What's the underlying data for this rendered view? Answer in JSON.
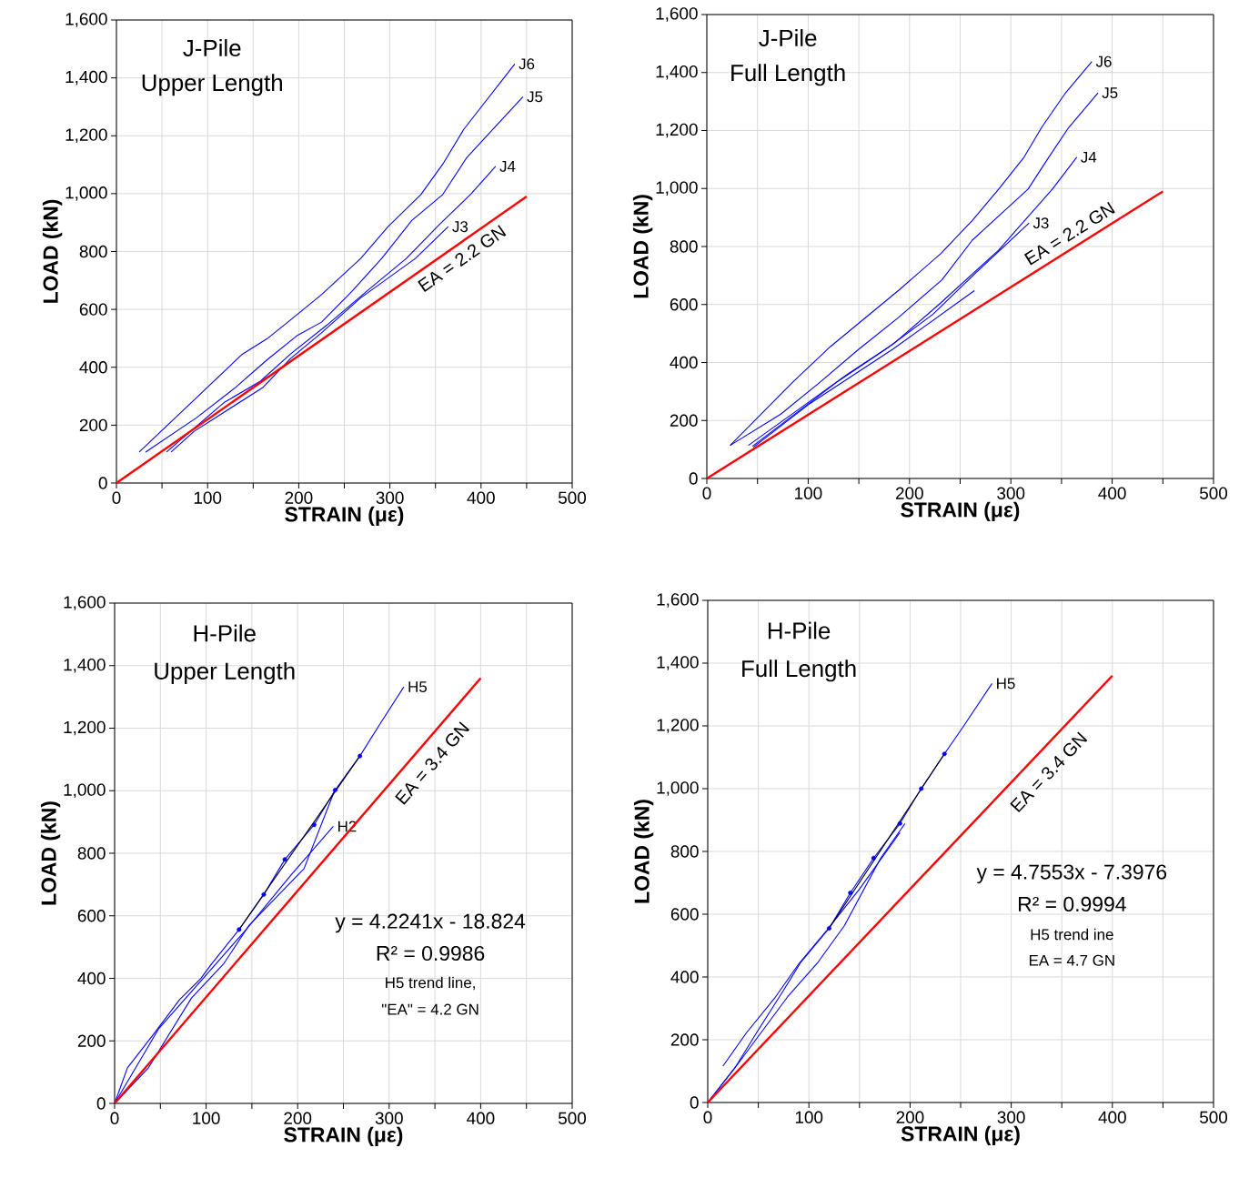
{
  "chart_data": [
    {
      "type": "line",
      "title": "J-Pile",
      "subtitle": "Upper Length",
      "xlabel": "STRAIN  (με)",
      "ylabel": "LOAD (kN)",
      "xlim": [
        0,
        500
      ],
      "ylim": [
        0,
        1600
      ],
      "xticks": [
        0,
        {
          "value": 50,
          "label": null
        },
        100,
        {
          "value": 150,
          "label": null
        },
        200,
        {
          "value": 250,
          "label": null
        },
        300,
        {
          "value": 350,
          "label": null
        },
        400,
        {
          "value": 450,
          "label": null
        },
        500
      ],
      "yticks": [
        0,
        200,
        400,
        600,
        800,
        {
          "value": 1000,
          "label": "1,000"
        },
        {
          "value": 1200,
          "label": "1,200"
        },
        {
          "value": 1400,
          "label": "1,400"
        },
        {
          "value": 1600,
          "label": "1,600"
        }
      ],
      "grid": true,
      "annotations": [
        "EA = 2.2 GN"
      ],
      "series": [
        {
          "name": "J6",
          "color": "#0000ff",
          "x": [
            25,
            138,
            165,
            188,
            225,
            268,
            298,
            334,
            358,
            381,
            437
          ],
          "values": [
            107,
            445,
            498,
            556,
            651,
            776,
            886,
            997,
            1102,
            1222,
            1448
          ]
        },
        {
          "name": "J5",
          "color": "#0000ff",
          "x": [
            32,
            88,
            131,
            165,
            198,
            225,
            258,
            291,
            324,
            358,
            384,
            413,
            446
          ],
          "values": [
            107,
            226,
            331,
            425,
            509,
            556,
            661,
            776,
            907,
            997,
            1123,
            1222,
            1335
          ]
        },
        {
          "name": "J4",
          "color": "#0000ff",
          "x": [
            55,
            81,
            118,
            158,
            191,
            231,
            274,
            318,
            354,
            389,
            416
          ],
          "values": [
            107,
            178,
            278,
            352,
            446,
            546,
            661,
            776,
            892,
            999,
            1094
          ]
        },
        {
          "name": "J3",
          "color": "#0000ff",
          "x": [
            60,
            85,
            161,
            191,
            225,
            268,
            328,
            364
          ],
          "values": [
            107,
            178,
            331,
            430,
            519,
            640,
            776,
            886
          ]
        },
        {
          "color": "#ff0000",
          "x": [
            0,
            450
          ],
          "values": [
            0,
            990
          ]
        }
      ]
    },
    {
      "type": "line",
      "title": "J-Pile",
      "subtitle": "Full Length",
      "xlabel": "STRAIN  (με)",
      "ylabel": "LOAD (kN)",
      "xlim": [
        0,
        500
      ],
      "ylim": [
        0,
        1600
      ],
      "xticks": [
        0,
        {
          "value": 50,
          "label": null
        },
        100,
        {
          "value": 150,
          "label": null
        },
        200,
        {
          "value": 250,
          "label": null
        },
        300,
        {
          "value": 350,
          "label": null
        },
        400,
        {
          "value": 450,
          "label": null
        },
        500
      ],
      "yticks": [
        0,
        200,
        400,
        600,
        800,
        {
          "value": 1000,
          "label": "1,000"
        },
        {
          "value": 1200,
          "label": "1,200"
        },
        {
          "value": 1400,
          "label": "1,400"
        },
        {
          "value": 1600,
          "label": "1,600"
        }
      ],
      "grid": true,
      "annotations": [
        "EA = 2.2 GN"
      ],
      "series": [
        {
          "name": "J6",
          "color": "#0000ff",
          "x": [
            23,
            85,
            122,
            190,
            231,
            262,
            288,
            313,
            331,
            354,
            380
          ],
          "values": [
            114,
            333,
            455,
            651,
            776,
            890,
            998,
            1108,
            1214,
            1330,
            1438
          ]
        },
        {
          "name": "J5",
          "color": "#0000ff",
          "x": [
            23,
            73,
            112,
            149,
            189,
            232,
            262,
            317,
            338,
            357,
            386
          ],
          "values": [
            114,
            222,
            333,
            443,
            555,
            685,
            822,
            998,
            1111,
            1210,
            1330
          ]
        },
        {
          "name": "J4",
          "color": "#0000ff",
          "x": [
            41,
            92,
            138,
            184,
            229,
            288,
            341,
            365
          ],
          "values": [
            114,
            242,
            358,
            464,
            600,
            788,
            998,
            1108
          ]
        },
        {
          "name": "J3",
          "color": "#0000ff",
          "x": [
            45,
            131,
            177,
            223,
            265,
            318
          ],
          "values": [
            111,
            339,
            447,
            566,
            708,
            881
          ]
        },
        {
          "color": "#0000ff",
          "x": [
            46,
            102,
            184,
            264
          ],
          "values": [
            108,
            259,
            447,
            648
          ]
        },
        {
          "color": "#ff0000",
          "x": [
            0,
            450
          ],
          "values": [
            0,
            990
          ]
        }
      ]
    },
    {
      "type": "line",
      "title": "H-Pile",
      "subtitle": "Upper Length",
      "xlabel": "STRAIN  (με)",
      "ylabel": "LOAD (kN)",
      "xlim": [
        0,
        500
      ],
      "ylim": [
        0,
        1600
      ],
      "xticks": [
        0,
        {
          "value": 50,
          "label": null
        },
        100,
        {
          "value": 150,
          "label": null
        },
        200,
        {
          "value": 250,
          "label": null
        },
        300,
        {
          "value": 350,
          "label": null
        },
        400,
        {
          "value": 450,
          "label": null
        },
        500
      ],
      "yticks": [
        0,
        200,
        400,
        600,
        800,
        {
          "value": 1000,
          "label": "1,000"
        },
        {
          "value": 1200,
          "label": "1,200"
        },
        {
          "value": 1400,
          "label": "1,400"
        },
        {
          "value": 1600,
          "label": "1,600"
        }
      ],
      "grid": true,
      "annotations": [
        "EA = 3.4 GN",
        "y = 4.2241x - 18.824",
        "R² = 0.9986",
        "H5 trend line,",
        "\"EA\" = 4.2 GN"
      ],
      "series": [
        {
          "name": "H5",
          "color": "#0000ff",
          "x": [
            0,
            14,
            43,
            71,
            94,
            106,
            136,
            163,
            186,
            218,
            241,
            268,
            291,
            316
          ],
          "values": [
            0,
            114,
            223,
            332,
            399,
            446,
            556,
            668,
            780,
            891,
            1002,
            1111,
            1218,
            1332
          ]
        },
        {
          "name": "H2",
          "color": "#0000ff",
          "x": [
            0,
            48,
            98,
            144,
            193,
            239
          ],
          "values": [
            0,
            238,
            404,
            557,
            731,
            886
          ]
        },
        {
          "color": "#0000ff",
          "x": [
            0,
            37,
            84,
            119,
            147,
            207,
            241
          ],
          "values": [
            0,
            114,
            337,
            446,
            570,
            751,
            1005
          ]
        },
        {
          "color": "#ff0000",
          "x": [
            0,
            400
          ],
          "values": [
            0,
            1360
          ]
        },
        {
          "color": "#000000",
          "x": [
            136,
            268
          ],
          "values": [
            556,
            1111
          ]
        },
        {
          "type": "scatter",
          "color": "#0000ff",
          "x": [
            136,
            163,
            186,
            218,
            241,
            268
          ],
          "values": [
            556,
            668,
            780,
            891,
            1002,
            1111
          ]
        }
      ]
    },
    {
      "type": "line",
      "title": "H-Pile",
      "subtitle": "Full Length",
      "xlabel": "STRAIN  (με)",
      "ylabel": "LOAD (kN)",
      "xlim": [
        0,
        500
      ],
      "ylim": [
        0,
        1600
      ],
      "xticks": [
        0,
        {
          "value": 50,
          "label": null
        },
        100,
        {
          "value": 150,
          "label": null
        },
        200,
        {
          "value": 250,
          "label": null
        },
        300,
        {
          "value": 350,
          "label": null
        },
        400,
        {
          "value": 450,
          "label": null
        },
        500
      ],
      "yticks": [
        0,
        200,
        400,
        600,
        800,
        {
          "value": 1000,
          "label": "1,000"
        },
        {
          "value": 1200,
          "label": "1,200"
        },
        {
          "value": 1400,
          "label": "1,400"
        },
        {
          "value": 1600,
          "label": "1,600"
        }
      ],
      "grid": true,
      "annotations": [
        "EA = 3.4 GN",
        "y = 4.7553x - 7.3976",
        "R² = 0.9994",
        "H5 trend ine",
        "EA = 4.7 GN"
      ],
      "series": [
        {
          "name": "H5",
          "color": "#0000ff",
          "x": [
            0,
            27,
            48,
            76,
            92,
            120,
            141,
            164,
            190,
            211,
            234,
            252,
            281
          ],
          "values": [
            0,
            111,
            221,
            363,
            447,
            555,
            668,
            779,
            889,
            1000,
            1111,
            1195,
            1335
          ]
        },
        {
          "color": "#0000ff",
          "x": [
            15,
            38,
            66,
            90,
            118,
            150,
            190
          ],
          "values": [
            116,
            221,
            332,
            442,
            550,
            680,
            860
          ]
        },
        {
          "color": "#0000ff",
          "x": [
            0,
            27,
            79,
            109,
            135,
            171,
            195
          ],
          "values": [
            0,
            111,
            337,
            447,
            563,
            779,
            889
          ]
        },
        {
          "color": "#ff0000",
          "x": [
            0,
            400
          ],
          "values": [
            0,
            1360
          ]
        },
        {
          "color": "#000000",
          "x": [
            120,
            234
          ],
          "values": [
            555,
            1111
          ]
        },
        {
          "type": "scatter",
          "color": "#0000ff",
          "x": [
            120,
            141,
            164,
            190,
            211,
            234
          ],
          "values": [
            555,
            668,
            779,
            889,
            1000,
            1111
          ]
        }
      ]
    }
  ]
}
